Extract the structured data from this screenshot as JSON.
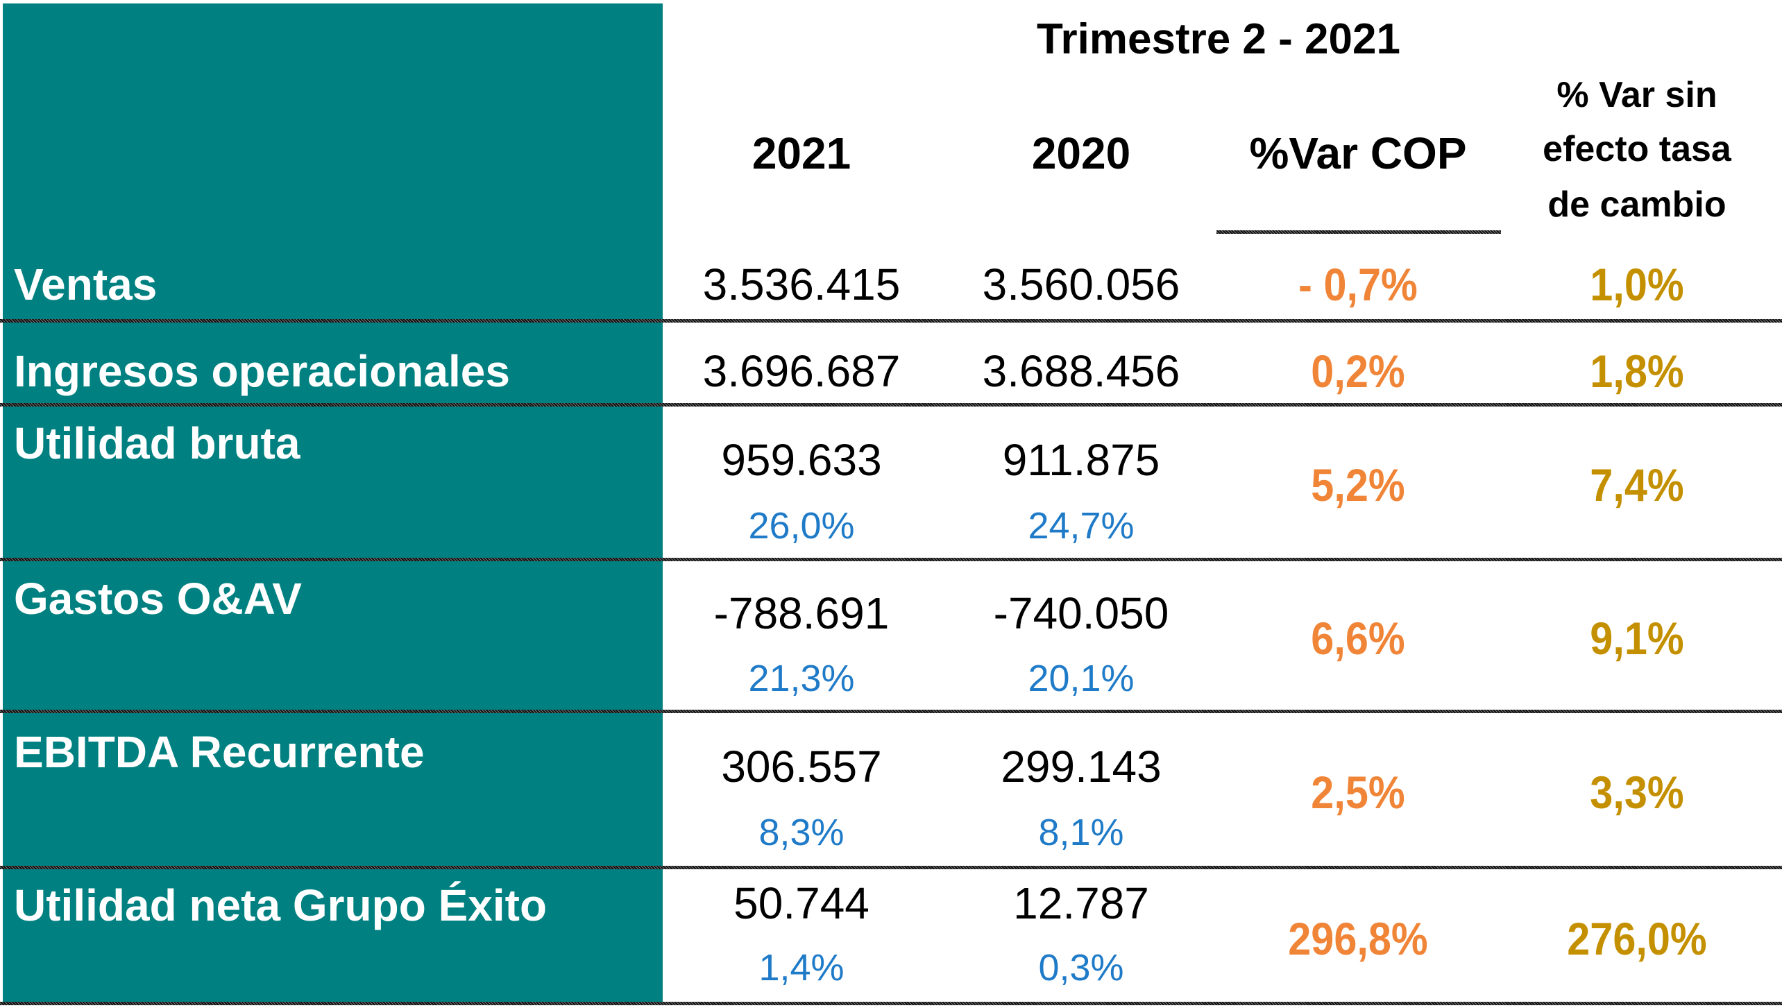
{
  "title": "Trimestre 2 - 2021",
  "columns": [
    "2021",
    "2020",
    "%Var COP",
    "% Var sin efecto tasa de cambio"
  ],
  "column_lines": {
    "fx": [
      "% Var sin",
      "efecto tasa",
      "de cambio"
    ]
  },
  "colors": {
    "label_bg": "#008080",
    "var_cop": "#F08437",
    "var_fx": "#C49000",
    "margin": "#1F7BC8"
  },
  "rows": [
    {
      "label": "Ventas",
      "v2021": "3.536.415",
      "v2020": "3.560.056",
      "var_cop": "- 0,7%",
      "var_fx": "1,0%"
    },
    {
      "label": "Ingresos operacionales",
      "v2021": "3.696.687",
      "v2020": "3.688.456",
      "var_cop": "0,2%",
      "var_fx": "1,8%"
    },
    {
      "label": "Utilidad bruta",
      "v2021": "959.633",
      "m2021": "26,0%",
      "v2020": "911.875",
      "m2020": "24,7%",
      "var_cop": "5,2%",
      "var_fx": "7,4%"
    },
    {
      "label": "Gastos O&AV",
      "v2021": "-788.691",
      "m2021": "21,3%",
      "v2020": "-740.050",
      "m2020": "20,1%",
      "var_cop": "6,6%",
      "var_fx": "9,1%"
    },
    {
      "label": "EBITDA Recurrente",
      "v2021": "306.557",
      "m2021": "8,3%",
      "v2020": "299.143",
      "m2020": "8,1%",
      "var_cop": "2,5%",
      "var_fx": "3,3%"
    },
    {
      "label": "Utilidad neta Grupo Éxito",
      "v2021": "50.744",
      "m2021": "1,4%",
      "v2020": "12.787",
      "m2020": "0,3%",
      "var_cop": "296,8%",
      "var_fx": "276,0%"
    }
  ]
}
